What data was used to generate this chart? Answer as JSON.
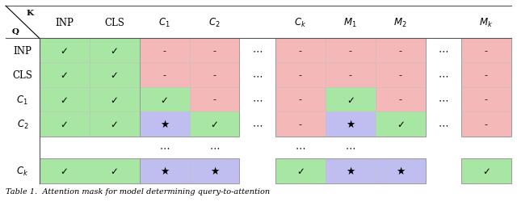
{
  "figsize": [
    6.4,
    2.51
  ],
  "dpi": 100,
  "green": "#a8e6a3",
  "pink": "#f5b8b8",
  "purple": "#c0bef0",
  "col_labels": [
    "INP",
    "CLS",
    "$C_1$",
    "$C_2$",
    "$C_k$",
    "$M_1$",
    "$M_2$",
    "$M_k$"
  ],
  "row_labels": [
    "INP",
    "CLS",
    "$C_1$",
    "$C_2$",
    "$C_k$"
  ],
  "caption": "Table 1.  Attention mask for model determining query-to-attention"
}
